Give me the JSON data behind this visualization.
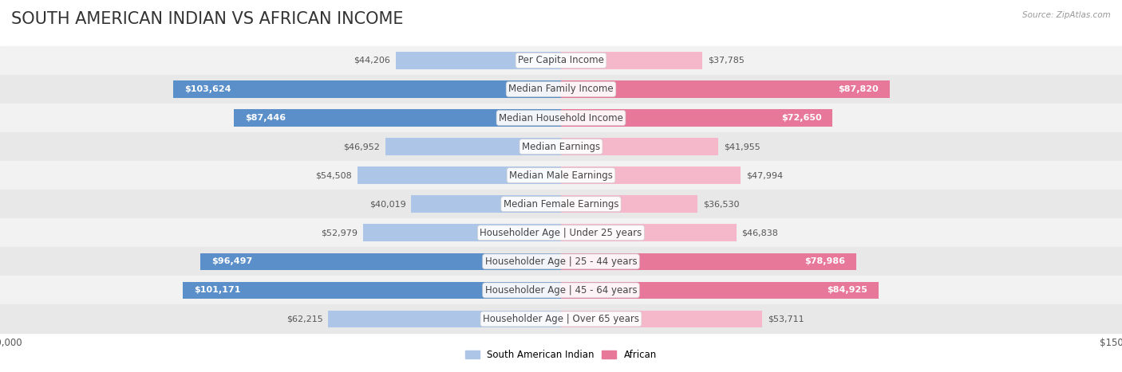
{
  "title": "SOUTH AMERICAN INDIAN VS AFRICAN INCOME",
  "source": "Source: ZipAtlas.com",
  "categories": [
    "Per Capita Income",
    "Median Family Income",
    "Median Household Income",
    "Median Earnings",
    "Median Male Earnings",
    "Median Female Earnings",
    "Householder Age | Under 25 years",
    "Householder Age | 25 - 44 years",
    "Householder Age | 45 - 64 years",
    "Householder Age | Over 65 years"
  ],
  "south_american_indian": [
    44206,
    103624,
    87446,
    46952,
    54508,
    40019,
    52979,
    96497,
    101171,
    62215
  ],
  "african": [
    37785,
    87820,
    72650,
    41955,
    47994,
    36530,
    46838,
    78986,
    84925,
    53711
  ],
  "color_sai_light": "#adc6e8",
  "color_sai_dark": "#5b8fc9",
  "color_african_light": "#f5b8ca",
  "color_african_dark": "#e8789a",
  "xlim": 150000,
  "legend_label_sai": "South American Indian",
  "legend_label_african": "African",
  "bar_height": 0.6,
  "title_fontsize": 15,
  "label_fontsize": 8.5,
  "value_fontsize": 8,
  "axis_fontsize": 8.5,
  "sai_dark_threshold": 80000,
  "afr_dark_threshold": 65000
}
